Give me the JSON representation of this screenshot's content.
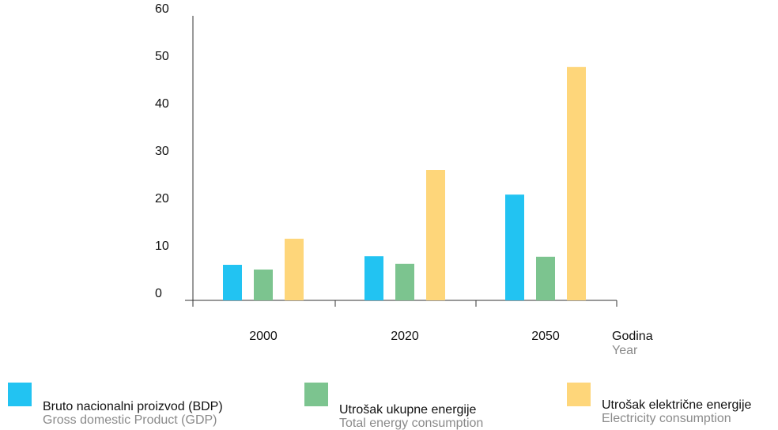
{
  "chart_data": {
    "type": "bar",
    "categories": [
      "2000",
      "2020",
      "2050"
    ],
    "series": [
      {
        "name": "Bruto nacionalni proizvod (BDP)",
        "name_en": "Gross domestic Product (GDP)",
        "color": "#22c3f2",
        "values": [
          7.5,
          9.3,
          22.3
        ]
      },
      {
        "name": "Utrošak ukupne energije",
        "name_en": "Total energy consumption",
        "color": "#7cc48f",
        "values": [
          6.5,
          7.7,
          9.2
        ]
      },
      {
        "name": "Utrošak električne energije",
        "name_en": "Electricity consumption",
        "color": "#fed67a",
        "values": [
          13,
          27.5,
          49.2
        ]
      }
    ],
    "yticks": [
      "0",
      "10",
      "20",
      "30",
      "40",
      "50",
      "60"
    ],
    "ylim": [
      0,
      60
    ],
    "xlabel": "Godina",
    "xlabel_en": "Year",
    "grid": false,
    "legend_position": "bottom"
  }
}
